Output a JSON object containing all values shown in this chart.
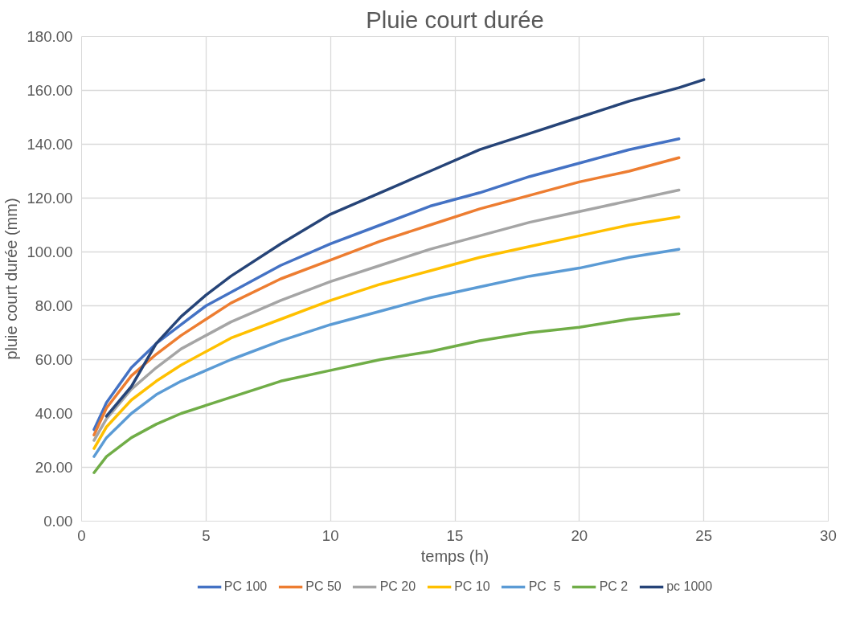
{
  "chart_data": {
    "type": "line",
    "title": "Pluie court durée",
    "xlabel": "temps (h)",
    "ylabel": "pluie court durée (mm)",
    "x": [
      0.5,
      1,
      2,
      3,
      4,
      5,
      6,
      8,
      10,
      12,
      14,
      16,
      18,
      20,
      22,
      24
    ],
    "xlim": [
      0,
      30
    ],
    "xticks": [
      0,
      5,
      10,
      15,
      20,
      25,
      30
    ],
    "ylim": [
      0,
      180
    ],
    "yticks": [
      {
        "value": 0,
        "label": "0.00"
      },
      {
        "value": 20,
        "label": "20.00"
      },
      {
        "value": 40,
        "label": "40.00"
      },
      {
        "value": 60,
        "label": "60.00"
      },
      {
        "value": 80,
        "label": "80.00"
      },
      {
        "value": 100,
        "label": "100.00"
      },
      {
        "value": 120,
        "label": "120.00"
      },
      {
        "value": 140,
        "label": "140.00"
      },
      {
        "value": 160,
        "label": "160.00"
      },
      {
        "value": 180,
        "label": "180.00"
      }
    ],
    "grid": true,
    "legend": "bottom",
    "marker": "none",
    "line_style": "solid",
    "series": [
      {
        "name": "PC 100",
        "color": "#4472c4",
        "values": [
          34,
          44,
          57,
          66,
          73,
          80,
          85,
          95,
          103,
          110,
          117,
          122,
          128,
          133,
          138,
          142
        ]
      },
      {
        "name": "PC 50",
        "color": "#ed7d31",
        "values": [
          32,
          42,
          54,
          62,
          69,
          75,
          81,
          90,
          97,
          104,
          110,
          116,
          121,
          126,
          130,
          135
        ]
      },
      {
        "name": "PC 20",
        "color": "#a5a5a5",
        "values": [
          30,
          38,
          49,
          57,
          64,
          69,
          74,
          82,
          89,
          95,
          101,
          106,
          111,
          115,
          119,
          123
        ]
      },
      {
        "name": "PC 10",
        "color": "#ffc000",
        "values": [
          27,
          35,
          45,
          52,
          58,
          63,
          68,
          75,
          82,
          88,
          93,
          98,
          102,
          106,
          110,
          113
        ]
      },
      {
        "name": "PC  5",
        "color": "#5b9bd5",
        "values": [
          24,
          31,
          40,
          47,
          52,
          56,
          60,
          67,
          73,
          78,
          83,
          87,
          91,
          94,
          98,
          101
        ]
      },
      {
        "name": "PC 2",
        "color": "#70ad47",
        "values": [
          18,
          24,
          31,
          36,
          40,
          43,
          46,
          52,
          56,
          60,
          63,
          67,
          70,
          72,
          75,
          77
        ]
      },
      {
        "name": "pc 1000",
        "color": "#264478",
        "x": [
          1,
          2,
          3,
          4,
          5,
          6,
          8,
          10,
          12,
          14,
          16,
          18,
          20,
          22,
          24,
          25
        ],
        "values": [
          39,
          50,
          66,
          76,
          84,
          91,
          103,
          114,
          122,
          130,
          138,
          144,
          150,
          156,
          161,
          164
        ]
      }
    ]
  }
}
